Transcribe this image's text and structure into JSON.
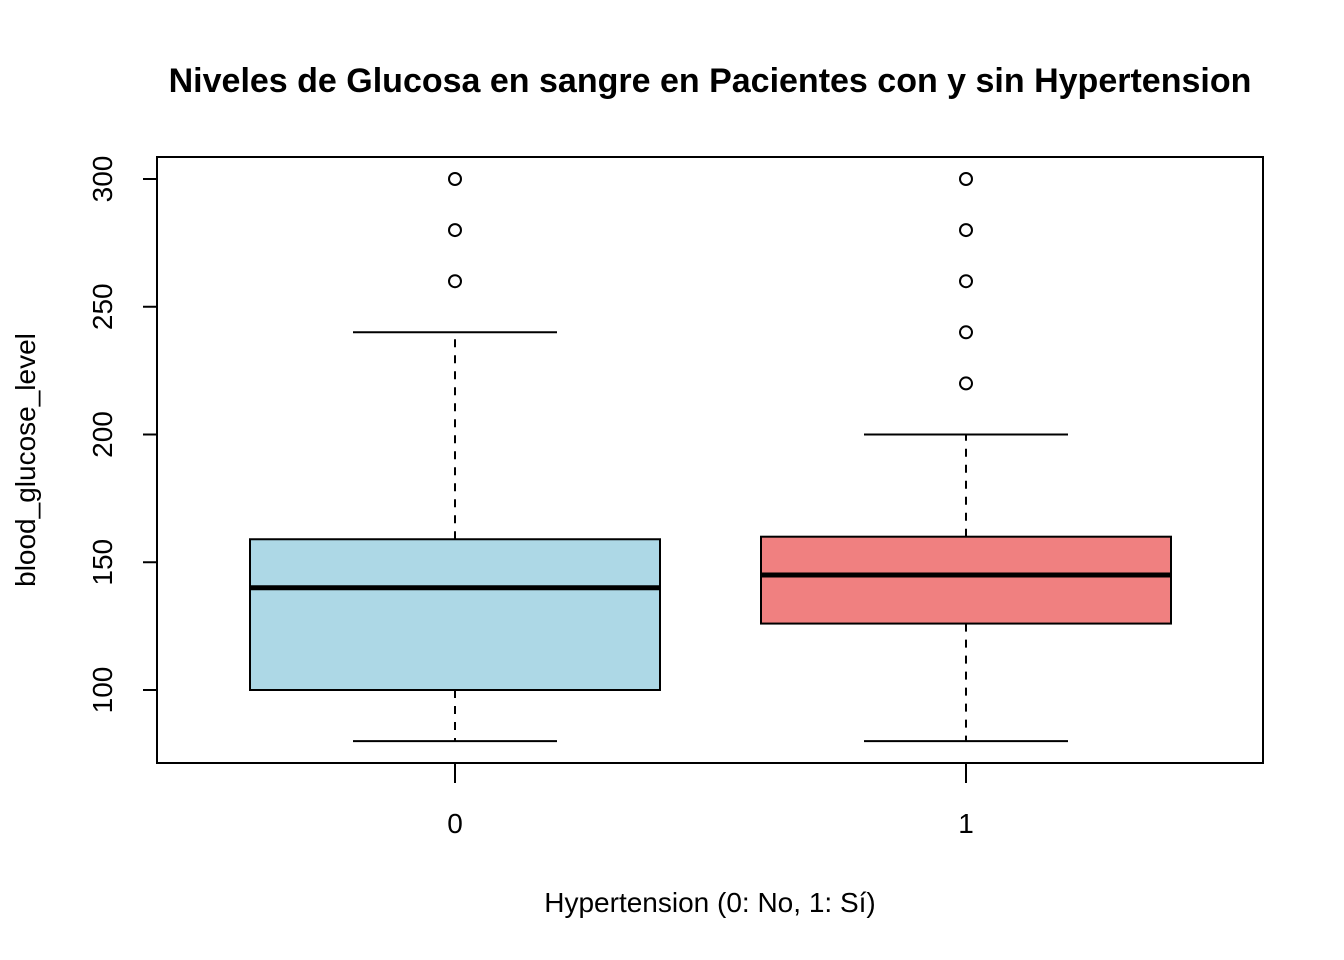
{
  "chart_data": {
    "type": "boxplot",
    "title": "Niveles de Glucosa en sangre en Pacientes con y sin Hypertension",
    "xlabel": "Hypertension (0: No, 1: Sí)",
    "ylabel": "blood_glucose_level",
    "ylim": [
      75,
      305
    ],
    "yticks": [
      "100",
      "150",
      "200",
      "250",
      "300"
    ],
    "categories": [
      "0",
      "1"
    ],
    "boxes": [
      {
        "category": "0",
        "color": "#ADD8E6",
        "whisker_low": 80,
        "q1": 100,
        "median": 140,
        "q3": 159,
        "whisker_high": 240,
        "outliers": [
          260,
          280,
          300
        ]
      },
      {
        "category": "1",
        "color": "#F08080",
        "whisker_low": 80,
        "q1": 126,
        "median": 145,
        "q3": 160,
        "whisker_high": 200,
        "outliers": [
          220,
          240,
          260,
          280,
          300
        ]
      }
    ],
    "grid": false,
    "legend": "none"
  }
}
